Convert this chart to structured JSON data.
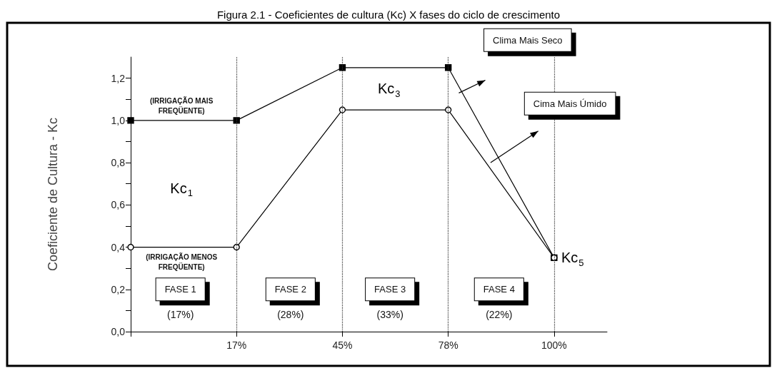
{
  "chart_data": {
    "type": "line",
    "title": "Figura 2.1 - Coeficientes de cultura (Kc) X fases do ciclo de crescimento",
    "ylabel": "Coeficiente de Cultura - Kc",
    "categories": [
      null,
      "17%",
      "45%",
      "78%",
      "100%"
    ],
    "series": [
      {
        "color": "#000000",
        "marker": "square",
        "values": [
          1.0,
          1.0,
          1.25,
          1.25,
          0.35
        ]
      },
      {
        "color": "#000000",
        "marker": "circle",
        "values": [
          0.4,
          0.4,
          1.05,
          1.05,
          0.35
        ]
      }
    ],
    "ylim": [
      0,
      1.3
    ],
    "yticks": [
      {
        "value": 0,
        "label": "0,0"
      },
      {
        "value": 0.1,
        "label": null
      },
      {
        "value": 0.2,
        "label": "0,2"
      },
      {
        "value": 0.3,
        "label": null
      },
      {
        "value": 0.4,
        "label": "0,4"
      },
      {
        "value": 0.5,
        "label": null
      },
      {
        "value": 0.6,
        "label": "0,6"
      },
      {
        "value": 0.7,
        "label": null
      },
      {
        "value": 0.8,
        "label": "0,8"
      },
      {
        "value": 0.9,
        "label": null
      },
      {
        "value": 1.0,
        "label": "1,0"
      },
      {
        "value": 1.1,
        "label": null
      },
      {
        "value": 1.2,
        "label": "1,2"
      }
    ],
    "ref_lines": [
      {
        "axis": "x",
        "value": "17%",
        "line_style": "dotted"
      },
      {
        "axis": "x",
        "value": "45%",
        "line_style": "dotted"
      },
      {
        "axis": "x",
        "value": "78%",
        "line_style": "dotted"
      },
      {
        "axis": "x",
        "value": "100%",
        "line_style": "dotted"
      }
    ],
    "annotations": [
      "(IRRIGAÇÃO MAIS\nFREQÜENTE)",
      "(IRRIGAÇÃO MENOS\nFREQÜENTE)",
      "Kc$_{1}$",
      "Kc$_{3}$",
      {
        "text": "Kc$_{5}$",
        "x": "100%",
        "y": 0.35
      },
      "FASE 1",
      "FASE 2",
      "FASE 3",
      "FASE 4",
      "(17%)",
      "(28%)",
      "(33%)",
      "(22%)",
      "Clima Mais Seco",
      "Cima Mais Úmido"
    ],
    "grid": false,
    "line_style": "solid"
  }
}
